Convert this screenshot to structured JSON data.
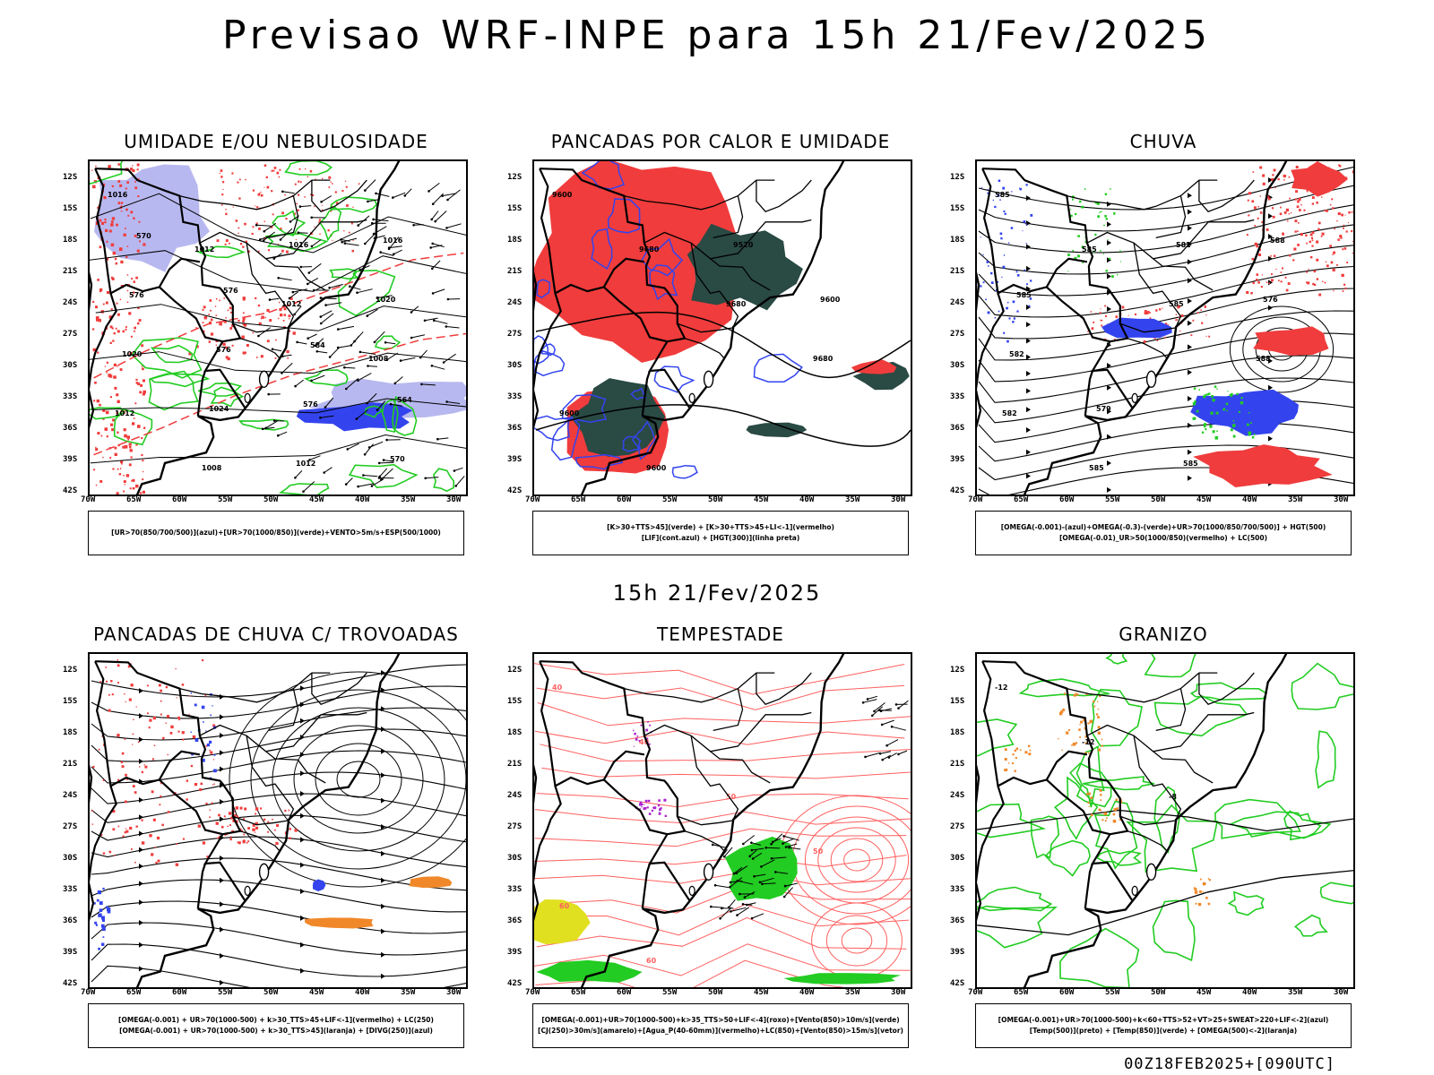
{
  "header": {
    "title": "Previsao WRF-INPE  para 15h 21/Fev/2025",
    "mid_title": "15h 21/Fev/2025",
    "footer": "00Z18FEB2025+[090UTC]"
  },
  "axes": {
    "lat_labels": [
      "12S",
      "15S",
      "18S",
      "21S",
      "24S",
      "27S",
      "30S",
      "33S",
      "36S",
      "39S",
      "42S"
    ],
    "lon_labels": [
      "70W",
      "65W",
      "60W",
      "55W",
      "50W",
      "45W",
      "40W",
      "35W",
      "30W"
    ]
  },
  "colors": {
    "red": "#f03c3c",
    "green": "#22cc22",
    "blue": "#3344ee",
    "lavender": "#b8b8f0",
    "darkteal": "#2a4a44",
    "orange": "#f0882a",
    "yellow": "#e0e020",
    "purple": "#aa22cc",
    "lightred": "#ff6060"
  },
  "panels": [
    {
      "title": "UMIDADE E/OU NEBULOSIDADE",
      "legend": [
        "[UR>70(850/700/500)](azul)+[UR>70(1000/850)](verde)+VENTO>5m/s+ESP(500/1000)"
      ],
      "labels": [
        "1016",
        "1012",
        "1012",
        "1008",
        "1012",
        "1008",
        "1016",
        "1020",
        "1020",
        "1024",
        "1012",
        "1016",
        "576",
        "576",
        "576",
        "570",
        "570",
        "576",
        "584",
        "564"
      ]
    },
    {
      "title": "PANCADAS POR CALOR E UMIDADE",
      "legend": [
        "[K>30+TTS>45](verde) + [K>30+TTS>45+LI<-1](vermelho)",
        "[LIF](cont.azul) + [HGT(300)](linha preta)"
      ],
      "labels": [
        "9600",
        "9680",
        "9680",
        "9680",
        "9600",
        "9600",
        "9520",
        "9600"
      ]
    },
    {
      "title": "CHUVA",
      "legend": [
        "[OMEGA(-0.001)-(azul)+OMEGA(-0.3)-(verde)+UR>70(1000/850/700/500)] + HGT(500)",
        "[OMEGA(-0.01)_UR>50(1000/850)(vermelho) + LC(500)"
      ],
      "labels": [
        "585",
        "585",
        "585",
        "588",
        "582",
        "585",
        "582",
        "576",
        "582",
        "579",
        "585",
        "588",
        "585"
      ]
    },
    {
      "title": "PANCADAS DE CHUVA C/ TROVOADAS",
      "legend": [
        "[OMEGA(-0.001) + UR>70(1000-500) + k>30_TTS>45+LIF<-1](vermelho) + LC(250)",
        "[OMEGA(-0.001) + UR>70(1000-500) + k>30_TTS>45](laranja) + [DIVG(250)](azul)"
      ],
      "labels": []
    },
    {
      "title": "TEMPESTADE",
      "legend": [
        "[OMEGA(-0.001)+UR>70(1000-500)+k>35_TTS>50+LIF<-4](roxo)+[Vento(850)>10m/s](verde)",
        "[CJ(250)>30m/s](amarelo)+[Agua_P(40-60mm)](vermelho)+LC(850)+[Vento(850)>15m/s](vetor)"
      ],
      "labels": [
        "40",
        "40",
        "50",
        "50",
        "60",
        "60"
      ]
    },
    {
      "title": "GRANIZO",
      "legend": [
        "[OMEGA(-0.001)+UR>70(1000-500)+k<60+TTS>52+VT>25+SWEAT>220+LIF<-2](azul)",
        "[Temp(500)](preto) + [Temp(850)](verde) + [OMEGA(500)<-2](laranja)"
      ],
      "labels": [
        "-12",
        "-12",
        "-8"
      ]
    }
  ]
}
